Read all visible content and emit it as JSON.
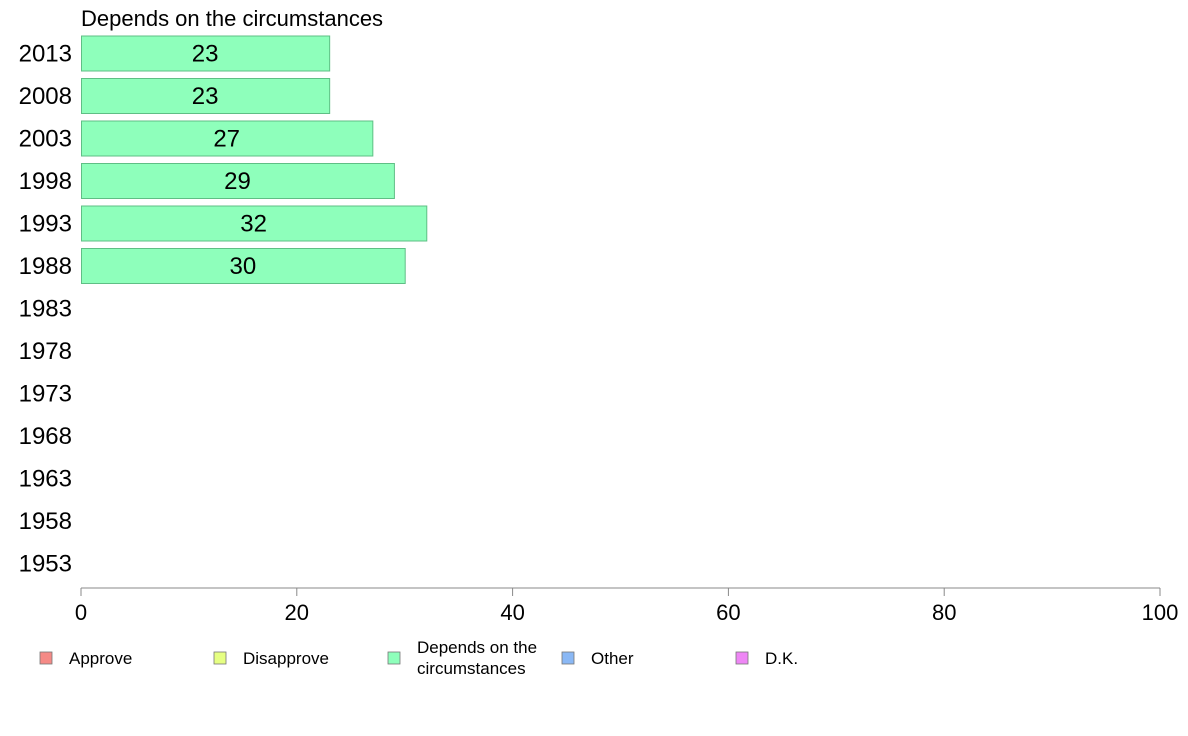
{
  "chart_data": {
    "type": "bar",
    "orientation": "horizontal",
    "title": "Depends on the circumstances",
    "categories": [
      "2013",
      "2008",
      "2003",
      "1998",
      "1993",
      "1988",
      "1983",
      "1978",
      "1973",
      "1968",
      "1963",
      "1958",
      "1953"
    ],
    "series": [
      {
        "name": "Depends on the circumstances",
        "color": "#8effbb",
        "values": [
          23,
          23,
          27,
          29,
          32,
          30,
          null,
          null,
          null,
          null,
          null,
          null,
          null
        ]
      }
    ],
    "xlim": [
      0,
      100
    ],
    "xticks": [
      0,
      20,
      40,
      60,
      80,
      100
    ],
    "grid": false,
    "legend_position": "bottom",
    "legend": [
      {
        "label": "Approve",
        "color": "#f58a86"
      },
      {
        "label": "Disapprove",
        "color": "#e6ff82"
      },
      {
        "label": "Depends on the circumstances",
        "color": "#8effbb"
      },
      {
        "label": "Other",
        "color": "#8ab8f5"
      },
      {
        "label": "D.K.",
        "color": "#ee86f5"
      }
    ]
  }
}
